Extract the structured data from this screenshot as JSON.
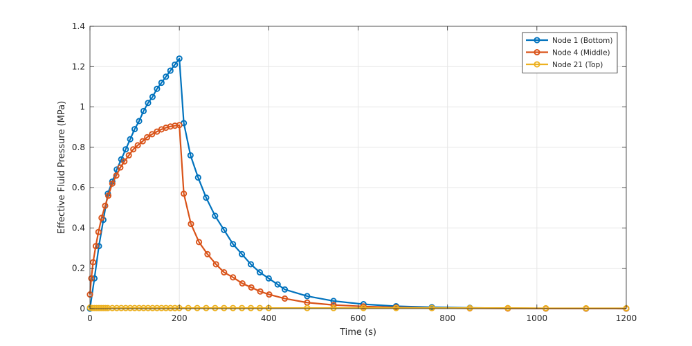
{
  "chart_data": {
    "type": "line",
    "title": "",
    "xlabel": "Time (s)",
    "ylabel": "Effective Fluid Pressure (MPa)",
    "xlim": [
      0,
      1200
    ],
    "ylim": [
      0,
      1.4
    ],
    "x_ticks": [
      0,
      200,
      400,
      600,
      800,
      1000,
      1200
    ],
    "x_tick_labels": [
      "0",
      "200",
      "400",
      "600",
      "800",
      "1000",
      "1200"
    ],
    "y_ticks": [
      0,
      0.2,
      0.4,
      0.6,
      0.8,
      1,
      1.2,
      1.4
    ],
    "y_tick_labels": [
      "0",
      "0.2",
      "0.4",
      "0.6",
      "0.8",
      "1",
      "1.2",
      "1.4"
    ],
    "grid": true,
    "legend_position": "top-right",
    "marker": "circle",
    "series": [
      {
        "name": "Node 1 (Bottom)",
        "color": "#0072BD",
        "points": [
          [
            0,
            0.0
          ],
          [
            10,
            0.15
          ],
          [
            20,
            0.31
          ],
          [
            30,
            0.44
          ],
          [
            40,
            0.57
          ],
          [
            50,
            0.63
          ],
          [
            60,
            0.69
          ],
          [
            70,
            0.74
          ],
          [
            80,
            0.79
          ],
          [
            90,
            0.84
          ],
          [
            100,
            0.89
          ],
          [
            110,
            0.93
          ],
          [
            120,
            0.98
          ],
          [
            130,
            1.02
          ],
          [
            140,
            1.05
          ],
          [
            150,
            1.09
          ],
          [
            160,
            1.12
          ],
          [
            170,
            1.15
          ],
          [
            180,
            1.18
          ],
          [
            190,
            1.21
          ],
          [
            200,
            1.24
          ],
          [
            210,
            0.92
          ],
          [
            225,
            0.76
          ],
          [
            242,
            0.65
          ],
          [
            260,
            0.55
          ],
          [
            280,
            0.46
          ],
          [
            300,
            0.39
          ],
          [
            320,
            0.32
          ],
          [
            340,
            0.27
          ],
          [
            360,
            0.22
          ],
          [
            380,
            0.18
          ],
          [
            400,
            0.15
          ],
          [
            420,
            0.12
          ],
          [
            436,
            0.095
          ],
          [
            486,
            0.062
          ],
          [
            545,
            0.038
          ],
          [
            612,
            0.022
          ],
          [
            685,
            0.012
          ],
          [
            765,
            0.007
          ],
          [
            850,
            0.004
          ],
          [
            935,
            0.002
          ],
          [
            1020,
            0.001
          ],
          [
            1110,
            0.0005
          ],
          [
            1200,
            0.0002
          ]
        ]
      },
      {
        "name": "Node 4 (Middle)",
        "color": "#D95319",
        "points": [
          [
            0,
            0.07
          ],
          [
            3,
            0.15
          ],
          [
            7,
            0.23
          ],
          [
            13,
            0.31
          ],
          [
            19,
            0.38
          ],
          [
            26,
            0.45
          ],
          [
            34,
            0.51
          ],
          [
            41,
            0.56
          ],
          [
            50,
            0.62
          ],
          [
            59,
            0.66
          ],
          [
            68,
            0.7
          ],
          [
            77,
            0.73
          ],
          [
            87,
            0.76
          ],
          [
            97,
            0.79
          ],
          [
            107,
            0.81
          ],
          [
            118,
            0.83
          ],
          [
            128,
            0.85
          ],
          [
            139,
            0.865
          ],
          [
            150,
            0.878
          ],
          [
            160,
            0.889
          ],
          [
            170,
            0.897
          ],
          [
            180,
            0.903
          ],
          [
            190,
            0.907
          ],
          [
            200,
            0.91
          ],
          [
            210,
            0.57
          ],
          [
            226,
            0.42
          ],
          [
            244,
            0.33
          ],
          [
            263,
            0.27
          ],
          [
            282,
            0.22
          ],
          [
            300,
            0.18
          ],
          [
            320,
            0.155
          ],
          [
            341,
            0.125
          ],
          [
            361,
            0.105
          ],
          [
            381,
            0.085
          ],
          [
            401,
            0.07
          ],
          [
            436,
            0.05
          ],
          [
            486,
            0.03
          ],
          [
            545,
            0.018
          ],
          [
            612,
            0.011
          ],
          [
            685,
            0.006
          ],
          [
            765,
            0.003
          ],
          [
            850,
            0.0015
          ],
          [
            935,
            0.0008
          ],
          [
            1020,
            0.0004
          ],
          [
            1110,
            0.0002
          ],
          [
            1200,
            0.0001
          ]
        ]
      },
      {
        "name": "Node 21 (Top)",
        "color": "#EDB120",
        "points": [
          [
            0,
            0.005
          ],
          [
            5,
            0.003
          ],
          [
            10,
            0.003
          ],
          [
            15,
            0.003
          ],
          [
            20,
            0.003
          ],
          [
            25,
            0.003
          ],
          [
            30,
            0.003
          ],
          [
            35,
            0.003
          ],
          [
            40,
            0.003
          ],
          [
            50,
            0.003
          ],
          [
            60,
            0.003
          ],
          [
            70,
            0.003
          ],
          [
            80,
            0.003
          ],
          [
            90,
            0.003
          ],
          [
            100,
            0.003
          ],
          [
            110,
            0.003
          ],
          [
            120,
            0.003
          ],
          [
            130,
            0.003
          ],
          [
            140,
            0.003
          ],
          [
            150,
            0.003
          ],
          [
            160,
            0.003
          ],
          [
            170,
            0.003
          ],
          [
            180,
            0.003
          ],
          [
            190,
            0.003
          ],
          [
            200,
            0.003
          ],
          [
            220,
            0.003
          ],
          [
            240,
            0.003
          ],
          [
            260,
            0.003
          ],
          [
            280,
            0.003
          ],
          [
            300,
            0.003
          ],
          [
            320,
            0.003
          ],
          [
            340,
            0.003
          ],
          [
            360,
            0.003
          ],
          [
            380,
            0.003
          ],
          [
            400,
            0.003
          ],
          [
            486,
            0.003
          ],
          [
            545,
            0.003
          ],
          [
            612,
            0.003
          ],
          [
            685,
            0.003
          ],
          [
            765,
            0.003
          ],
          [
            850,
            0.003
          ],
          [
            935,
            0.003
          ],
          [
            1020,
            0.002
          ],
          [
            1110,
            0.002
          ],
          [
            1200,
            0.002
          ]
        ]
      }
    ]
  }
}
